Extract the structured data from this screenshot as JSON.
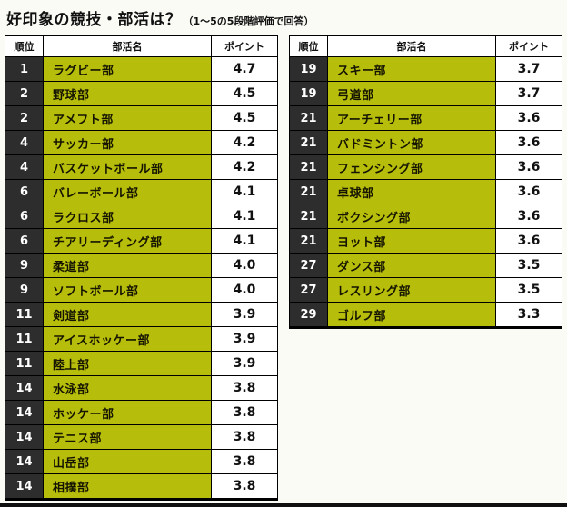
{
  "page": {
    "title": "好印象の競技・部活は？",
    "subtitle": "（1〜5の5段階評価で回答）"
  },
  "columns": {
    "rank": "順位",
    "club": "部活名",
    "points": "ポイント"
  },
  "colors": {
    "club_bg": "#b7bd0b",
    "rank_bg": "#2d2d2d",
    "points_bg": "#ffffff",
    "border": "#000000",
    "page_bg": "#fbfbf6"
  },
  "chart_data": {
    "type": "table",
    "title": "好印象の競技・部活は？（1〜5の5段階評価で回答）",
    "columns": [
      "順位",
      "部活名",
      "ポイント"
    ],
    "tables": [
      {
        "rows": [
          {
            "rank": "1",
            "club": "ラグビー部",
            "points": "4.7"
          },
          {
            "rank": "2",
            "club": "野球部",
            "points": "4.5"
          },
          {
            "rank": "2",
            "club": "アメフト部",
            "points": "4.5"
          },
          {
            "rank": "4",
            "club": "サッカー部",
            "points": "4.2"
          },
          {
            "rank": "4",
            "club": "バスケットボール部",
            "points": "4.2"
          },
          {
            "rank": "6",
            "club": "バレーボール部",
            "points": "4.1"
          },
          {
            "rank": "6",
            "club": "ラクロス部",
            "points": "4.1"
          },
          {
            "rank": "6",
            "club": "チアリーディング部",
            "points": "4.1"
          },
          {
            "rank": "9",
            "club": "柔道部",
            "points": "4.0"
          },
          {
            "rank": "9",
            "club": "ソフトボール部",
            "points": "4.0"
          },
          {
            "rank": "11",
            "club": "剣道部",
            "points": "3.9"
          },
          {
            "rank": "11",
            "club": "アイスホッケー部",
            "points": "3.9"
          },
          {
            "rank": "11",
            "club": "陸上部",
            "points": "3.9"
          },
          {
            "rank": "14",
            "club": "水泳部",
            "points": "3.8"
          },
          {
            "rank": "14",
            "club": "ホッケー部",
            "points": "3.8"
          },
          {
            "rank": "14",
            "club": "テニス部",
            "points": "3.8"
          },
          {
            "rank": "14",
            "club": "山岳部",
            "points": "3.8"
          },
          {
            "rank": "14",
            "club": "相撲部",
            "points": "3.8"
          }
        ]
      },
      {
        "rows": [
          {
            "rank": "19",
            "club": "スキー部",
            "points": "3.7"
          },
          {
            "rank": "19",
            "club": "弓道部",
            "points": "3.7"
          },
          {
            "rank": "21",
            "club": "アーチェリー部",
            "points": "3.6"
          },
          {
            "rank": "21",
            "club": "バドミントン部",
            "points": "3.6"
          },
          {
            "rank": "21",
            "club": "フェンシング部",
            "points": "3.6"
          },
          {
            "rank": "21",
            "club": "卓球部",
            "points": "3.6"
          },
          {
            "rank": "21",
            "club": "ボクシング部",
            "points": "3.6"
          },
          {
            "rank": "21",
            "club": "ヨット部",
            "points": "3.6"
          },
          {
            "rank": "27",
            "club": "ダンス部",
            "points": "3.5"
          },
          {
            "rank": "27",
            "club": "レスリング部",
            "points": "3.5"
          },
          {
            "rank": "29",
            "club": "ゴルフ部",
            "points": "3.3"
          }
        ]
      }
    ]
  }
}
